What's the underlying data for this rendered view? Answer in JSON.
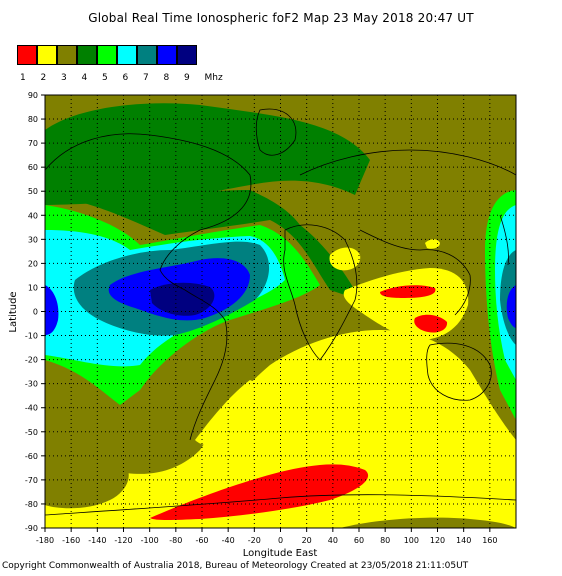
{
  "title": "Global Real Time Ionospheric foF2 Map  23 May 2018 20:47 UT",
  "legend": {
    "colors": [
      "#ff0000",
      "#ffff00",
      "#808000",
      "#008000",
      "#00ff00",
      "#00ffff",
      "#008080",
      "#0000ff",
      "#000080"
    ],
    "labels": [
      "1",
      "2",
      "3",
      "4",
      "5",
      "6",
      "7",
      "8",
      "9"
    ],
    "unit": "Mhz"
  },
  "axes": {
    "x_title": "Longitude East",
    "y_title": "Latitude",
    "x_ticks": [
      "-180",
      "-160",
      "-140",
      "-120",
      "-100",
      "-80",
      "-60",
      "-40",
      "-20",
      "0",
      "20",
      "40",
      "60",
      "80",
      "100",
      "120",
      "140",
      "160"
    ],
    "y_ticks": [
      "90",
      "80",
      "70",
      "60",
      "50",
      "40",
      "30",
      "20",
      "10",
      "0",
      "-10",
      "-20",
      "-30",
      "-40",
      "-50",
      "-60",
      "-70",
      "-80",
      "-90"
    ]
  },
  "footer": "Copyright Commonwealth of Australia 2018, Bureau of Meteorology    Created at 23/05/2018 21:11:05UT"
}
